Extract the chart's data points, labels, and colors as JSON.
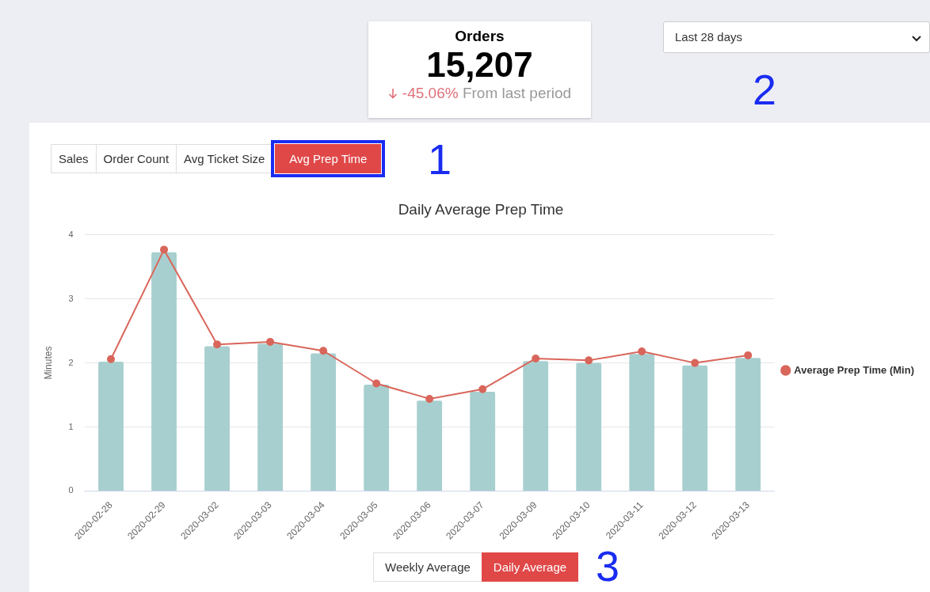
{
  "chart_data": [
    {
      "type": "other",
      "title": "Orders",
      "annotations": [
        "15,207",
        "-45.06%",
        "From last period"
      ]
    },
    {
      "type": "bar",
      "title": "Daily Average Prep Time",
      "ylabel": "Minutes",
      "categories": [
        "2020-02-28",
        "2020-02-29",
        "2020-03-02",
        "2020-03-03",
        "2020-03-04",
        "2020-03-05",
        "2020-03-06",
        "2020-03-07",
        "2020-03-09",
        "2020-03-10",
        "2020-03-11",
        "2020-03-12",
        "2020-03-13"
      ],
      "series": [
        {
          "type": "bar",
          "color": "#a8cfcf",
          "values": [
            2.02,
            3.73,
            2.26,
            2.3,
            2.15,
            1.66,
            1.41,
            1.55,
            2.03,
            2.0,
            2.14,
            1.96,
            2.08
          ]
        },
        {
          "type": "line",
          "name": "Average Prep Time (Min)",
          "color": "#d9665b",
          "values": [
            2.06,
            3.77,
            2.29,
            2.33,
            2.19,
            1.68,
            1.44,
            1.59,
            2.07,
            2.04,
            2.18,
            2.0,
            2.12
          ]
        }
      ],
      "ylim": [
        0,
        4
      ],
      "yticks": [
        0,
        1,
        2,
        3,
        4
      ],
      "grid": "y",
      "legend": "right",
      "marker": "circle",
      "line_style": "solid",
      "annotations": [
        "Sales",
        "Order Count",
        "Avg Ticket Size",
        "Avg Prep Time",
        "Last 28 days",
        "Weekly Average",
        "Daily Average",
        "1",
        "2",
        "3"
      ]
    }
  ]
}
